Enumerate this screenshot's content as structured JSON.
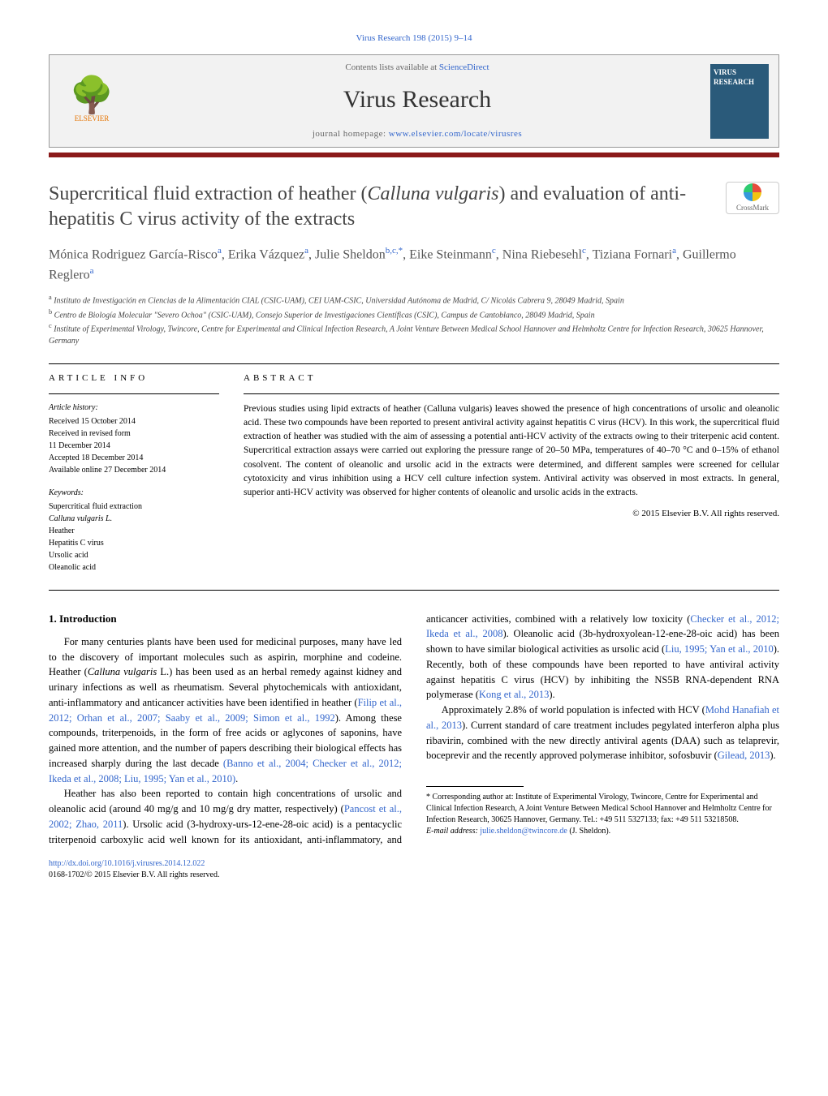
{
  "journal_ref": "Virus Research 198 (2015) 9–14",
  "header": {
    "contents_prefix": "Contents lists available at ",
    "contents_link": "ScienceDirect",
    "journal_name": "Virus Research",
    "homepage_prefix": "journal homepage: ",
    "homepage_link": "www.elsevier.com/locate/virusres",
    "publisher_logo_label": "ELSEVIER",
    "cover_title": "VIRUS RESEARCH"
  },
  "title_parts": {
    "pre": "Supercritical fluid extraction of heather (",
    "italic": "Calluna vulgaris",
    "post": ") and evaluation of anti-hepatitis C virus activity of the extracts"
  },
  "crossmark_label": "CrossMark",
  "authors_html": "Mónica Rodriguez García-Risco<sup>a</sup>, Erika Vázquez<sup>a</sup>, Julie Sheldon<sup>b,c,*</sup>, Eike Steinmann<sup>c</sup>, Nina Riebesehl<sup>c</sup>, Tiziana Fornari<sup>a</sup>, Guillermo Reglero<sup>a</sup>",
  "affiliations": [
    {
      "sup": "a",
      "text": "Instituto de Investigación en Ciencias de la Alimentación CIAL (CSIC-UAM), CEI UAM-CSIC, Universidad Autónoma de Madrid, C/ Nicolás Cabrera 9, 28049 Madrid, Spain"
    },
    {
      "sup": "b",
      "text": "Centro de Biología Molecular \"Severo Ochoa\" (CSIC-UAM), Consejo Superior de Investigaciones Científicas (CSIC), Campus de Cantoblanco, 28049 Madrid, Spain"
    },
    {
      "sup": "c",
      "text": "Institute of Experimental Virology, Twincore, Centre for Experimental and Clinical Infection Research, A Joint Venture Between Medical School Hannover and Helmholtz Centre for Infection Research, 30625 Hannover, Germany"
    }
  ],
  "article_info": {
    "heading": "ARTICLE INFO",
    "history_h": "Article history:",
    "history": [
      "Received 15 October 2014",
      "Received in revised form",
      "11 December 2014",
      "Accepted 18 December 2014",
      "Available online 27 December 2014"
    ],
    "keywords_h": "Keywords:",
    "keywords": [
      "Supercritical fluid extraction",
      "Calluna vulgaris L.",
      "Heather",
      "Hepatitis C virus",
      "Ursolic acid",
      "Oleanolic acid"
    ]
  },
  "abstract": {
    "heading": "ABSTRACT",
    "text": "Previous studies using lipid extracts of heather (Calluna vulgaris) leaves showed the presence of high concentrations of ursolic and oleanolic acid. These two compounds have been reported to present antiviral activity against hepatitis C virus (HCV). In this work, the supercritical fluid extraction of heather was studied with the aim of assessing a potential anti-HCV activity of the extracts owing to their triterpenic acid content. Supercritical extraction assays were carried out exploring the pressure range of 20–50 MPa, temperatures of 40–70 °C and 0–15% of ethanol cosolvent. The content of oleanolic and ursolic acid in the extracts were determined, and different samples were screened for cellular cytotoxicity and virus inhibition using a HCV cell culture infection system. Antiviral activity was observed in most extracts. In general, superior anti-HCV activity was observed for higher contents of oleanolic and ursolic acids in the extracts.",
    "copyright": "© 2015 Elsevier B.V. All rights reserved."
  },
  "body": {
    "section_heading": "1. Introduction",
    "para1_pre": "For many centuries plants have been used for medicinal purposes, many have led to the discovery of important molecules such as aspirin, morphine and codeine. Heather (",
    "para1_italic": "Calluna vulgaris",
    "para1_post": " L.) has been used as an herbal remedy against kidney and urinary infections as well as rheumatism. Several phytochemicals with antioxidant, anti-inflammatory and anticancer activities have been identified in heather (",
    "para1_ref1": "Filip et al., 2012; Orhan et al., 2007; Saaby et al., 2009; Simon et al., 1992",
    "para1_tail": "). Among these compounds, triterpenoids, in the form of free acids or aglycones of saponins, have gained more attention, and the number of papers describing their biological effects has increased sharply during the last decade",
    "para1_break_ref": "(Banno et al., 2004; Checker et al., 2012; Ikeda et al., 2008; Liu, 1995; Yan et al., 2010)",
    "para1_end": ".",
    "para2_pre": "Heather has also been reported to contain high concentrations of ursolic and oleanolic acid (around 40 mg/g and 10 mg/g dry matter, respectively) (",
    "para2_ref1": "Pancost et al., 2002; Zhao, 2011",
    "para2_mid1": "). Ursolic acid (3-hydroxy-urs-12-ene-28-oic acid) is a pentacyclic triterpenoid carboxylic acid well known for its antioxidant, anti-inflammatory, and anticancer activities, combined with a relatively low toxicity (",
    "para2_ref2": "Checker et al., 2012; Ikeda et al., 2008",
    "para2_mid2": "). Oleanolic acid (3b-hydroxyolean-12-ene-28-oic acid) has been shown to have similar biological activities as ursolic acid (",
    "para2_ref3": "Liu, 1995; Yan et al., 2010",
    "para2_mid3": "). Recently, both of these compounds have been reported to have antiviral activity against hepatitis C virus (HCV) by inhibiting the NS5B RNA-dependent RNA polymerase (",
    "para2_ref4": "Kong et al., 2013",
    "para2_end": ").",
    "para3_pre": "Approximately 2.8% of world population is infected with HCV (",
    "para3_ref1": "Mohd Hanafiah et al., 2013",
    "para3_mid": "). Current standard of care treatment includes pegylated interferon alpha plus ribavirin, combined with the new directly antiviral agents (DAA) such as telaprevir, boceprevir and the recently approved polymerase inhibitor, sofosbuvir (",
    "para3_ref2": "Gilead, 2013",
    "para3_end": ")."
  },
  "footnote": {
    "corr": "* Corresponding author at: Institute of Experimental Virology, Twincore, Centre for Experimental and Clinical Infection Research, A Joint Venture Between Medical School Hannover and Helmholtz Centre for Infection Research, 30625 Hannover, Germany. Tel.: +49 511 5327133; fax: +49 511 53218508.",
    "email_label": "E-mail address: ",
    "email": "julie.sheldon@twincore.de",
    "email_tail": " (J. Sheldon)."
  },
  "footer": {
    "doi": "http://dx.doi.org/10.1016/j.virusres.2014.12.022",
    "issn_line": "0168-1702/© 2015 Elsevier B.V. All rights reserved."
  },
  "colors": {
    "accent_bar": "#8b1a1a",
    "link": "#3366cc",
    "header_bg": "#f2f2f2",
    "cover_bg": "#2a5a7a"
  }
}
